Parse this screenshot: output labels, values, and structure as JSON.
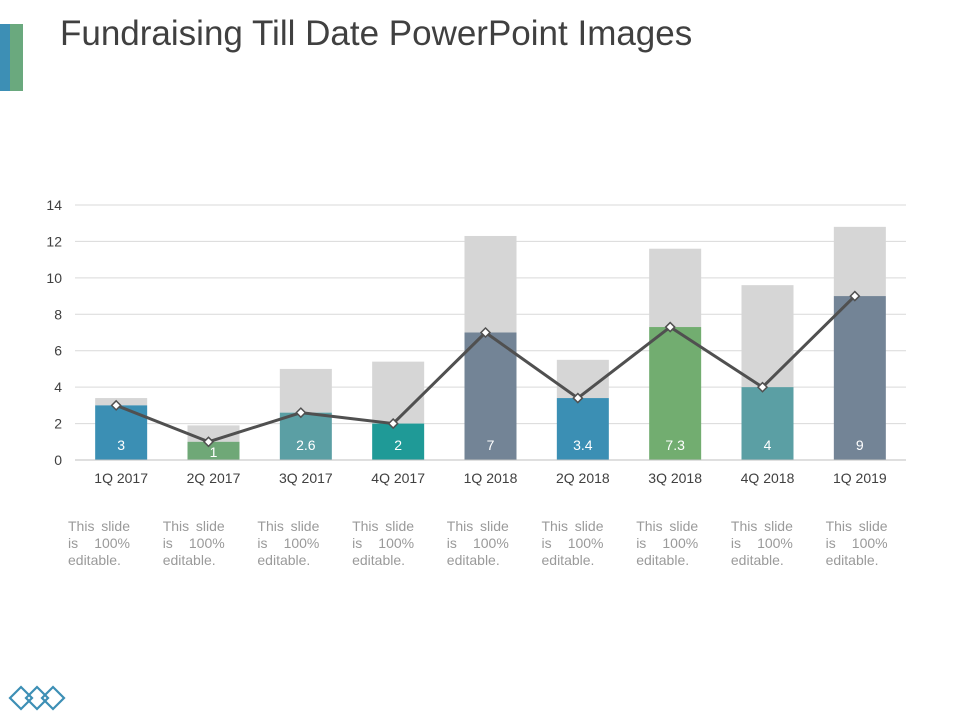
{
  "title": "Fundraising Till Date PowerPoint Images",
  "colors": {
    "accent_left": "#3d8fb5",
    "accent_right": "#6aa97e",
    "gray_stack": "#d6d6d6",
    "line": "#505050",
    "grid": "#d9d9d9",
    "axis_text": "#404040"
  },
  "chart_data": {
    "type": "bar",
    "stacked": true,
    "categories": [
      "1Q 2017",
      "2Q 2017",
      "3Q 2017",
      "4Q 2017",
      "1Q 2018",
      "2Q 2018",
      "3Q 2018",
      "4Q 2018",
      "1Q 2019"
    ],
    "series": [
      {
        "values": [
          3,
          1,
          2.6,
          2,
          7,
          3.4,
          7.3,
          4,
          9
        ],
        "labels": [
          "3",
          "1",
          "2.6",
          "2",
          "7",
          "3.4",
          "7.3",
          "4",
          "9"
        ],
        "colors": [
          "#3b8fb4",
          "#6fa877",
          "#5b9fa4",
          "#1f9a97",
          "#738496",
          "#3b8fb4",
          "#72ad70",
          "#5b9fa4",
          "#738496"
        ]
      },
      {
        "values": [
          0.4,
          0.9,
          2.4,
          3.4,
          5.3,
          2.1,
          4.3,
          5.6,
          3.8
        ],
        "color": "#d6d6d6"
      },
      {
        "type": "line",
        "values": [
          3,
          1,
          2.6,
          2,
          7,
          3.4,
          7.3,
          4,
          9
        ],
        "color": "#505050"
      }
    ],
    "yticks": [
      "0",
      "2",
      "4",
      "6",
      "8",
      "10",
      "12",
      "14"
    ],
    "ylim": [
      0,
      14
    ],
    "grid": true,
    "legend": "none"
  },
  "notes": [
    "This slide is 100% editable.",
    "This slide is 100% editable.",
    "This slide is 100% editable.",
    "This slide is 100% editable.",
    "This slide is 100% editable.",
    "This slide is 100% editable.",
    "This slide is 100% editable.",
    "This slide is 100% editable.",
    "This slide is 100% editable."
  ],
  "footer_icon": "diamond-chain-icon"
}
